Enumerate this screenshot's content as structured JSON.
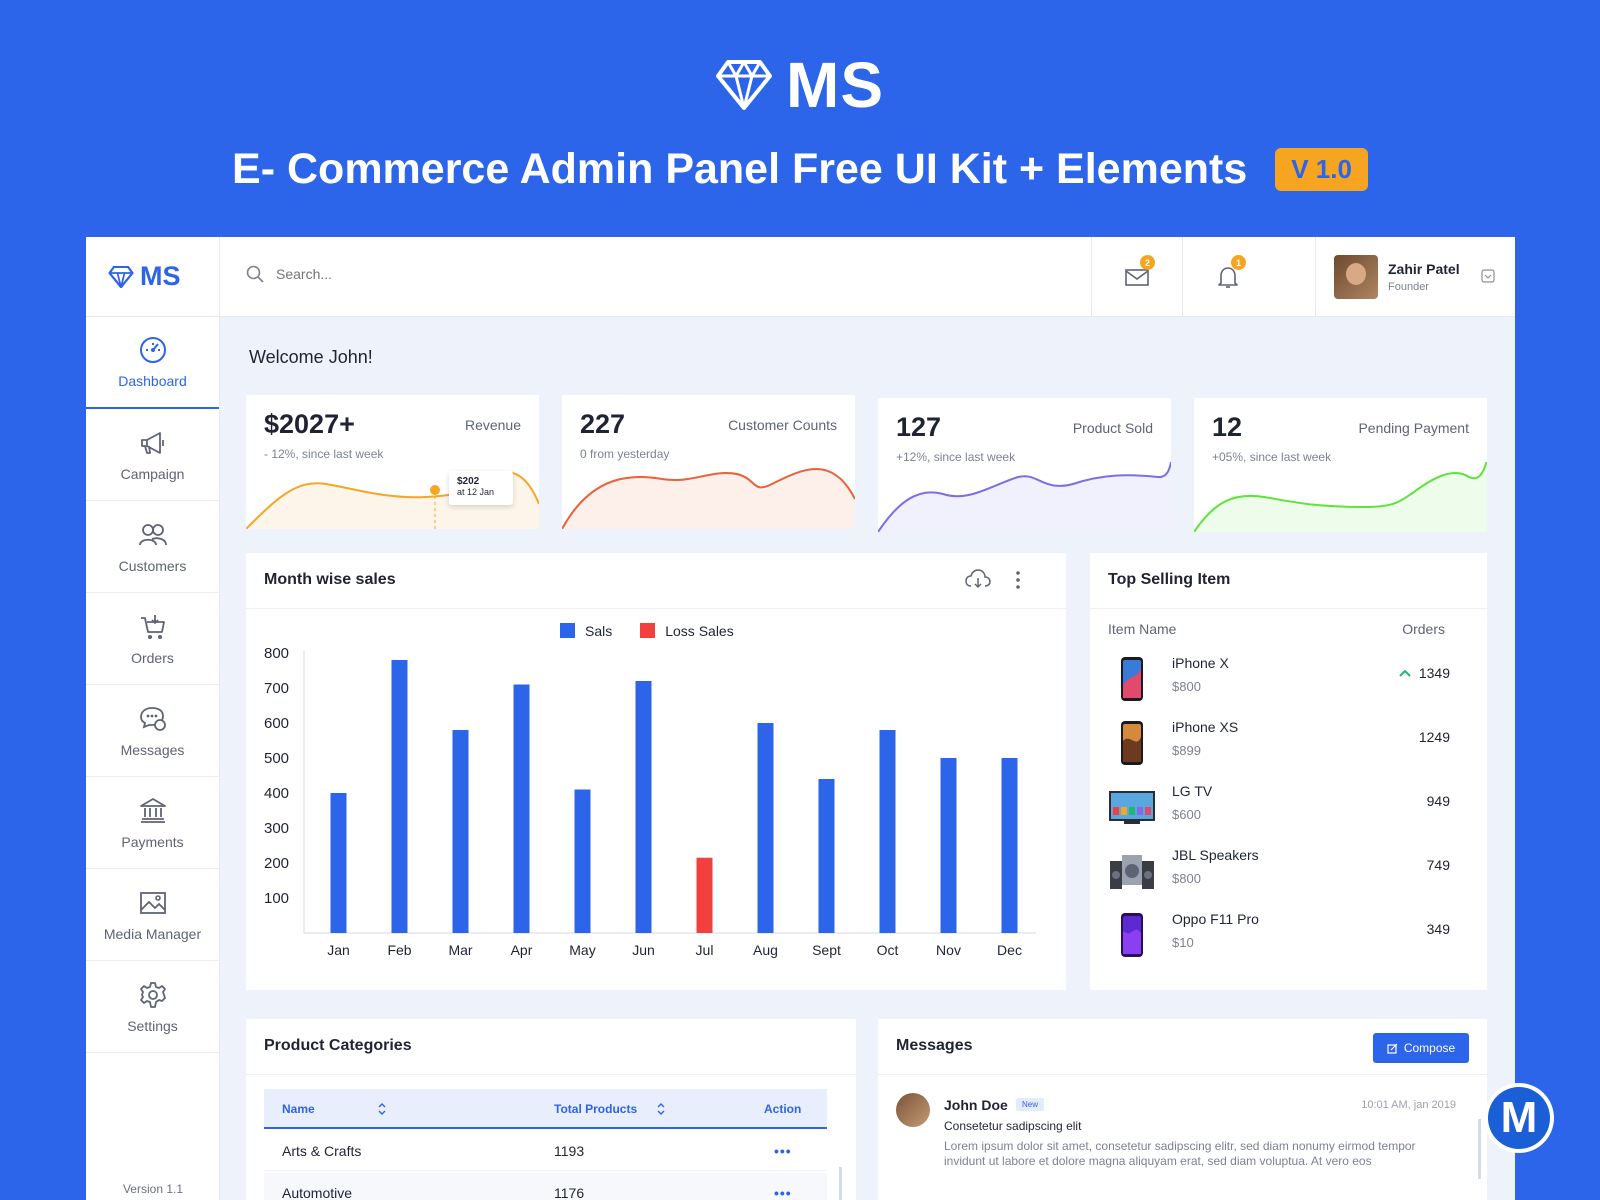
{
  "hero": {
    "brand": "MS",
    "title": "E- Commerce Admin Panel Free UI Kit + Elements",
    "version": "V 1.0"
  },
  "sidebar": {
    "brand": "MS",
    "items": [
      {
        "label": "Dashboard",
        "icon": "dashboard-icon",
        "active": true
      },
      {
        "label": "Campaign",
        "icon": "megaphone-icon"
      },
      {
        "label": "Customers",
        "icon": "users-icon"
      },
      {
        "label": "Orders",
        "icon": "cart-icon"
      },
      {
        "label": "Messages",
        "icon": "chat-icon"
      },
      {
        "label": "Payments",
        "icon": "bank-icon"
      },
      {
        "label": "Media Manager",
        "icon": "image-icon"
      },
      {
        "label": "Settings",
        "icon": "gear-icon"
      }
    ],
    "version": "Version 1.1"
  },
  "topbar": {
    "search_placeholder": "Search...",
    "mail_count": "2",
    "notif_count": "1",
    "user_name": "Zahir Patel",
    "user_role": "Founder"
  },
  "welcome": "Welcome John!",
  "stats": [
    {
      "value": "$2027+",
      "label": "Revenue",
      "sub": "- 12%, since last week",
      "color": "#f5a623",
      "fill": "#fdf5e9",
      "tooltip_value": "$202",
      "tooltip_sub": "at 12 Jan"
    },
    {
      "value": "227",
      "label": "Customer Counts",
      "sub": "0 from yesterday",
      "color": "#e8623a",
      "fill": "#fdefea"
    },
    {
      "value": "127",
      "label": "Product Sold",
      "sub": "+12%, since last week",
      "color": "#7b6ee8",
      "fill": "#f1f0fd"
    },
    {
      "value": "12",
      "label": "Pending Payment",
      "sub": "+05%, since last week",
      "color": "#5fe33a",
      "fill": "#eefceb"
    }
  ],
  "sales_card": {
    "title": "Month wise sales",
    "legend": [
      "Sals",
      "Loss Sales"
    ],
    "colors": {
      "sales": "#2c64ea",
      "loss": "#f2403f"
    }
  },
  "chart_data": {
    "type": "bar",
    "title": "Month wise sales",
    "categories": [
      "Jan",
      "Feb",
      "Mar",
      "Apr",
      "May",
      "Jun",
      "Jul",
      "Aug",
      "Sept",
      "Oct",
      "Nov",
      "Dec"
    ],
    "values": [
      400,
      780,
      580,
      710,
      410,
      720,
      215,
      600,
      440,
      580,
      500,
      500
    ],
    "loss_index": [
      6
    ],
    "series": [
      {
        "name": "Sals",
        "color": "#2c64ea"
      },
      {
        "name": "Loss Sales",
        "color": "#f2403f"
      }
    ],
    "yticks": [
      100,
      200,
      300,
      400,
      500,
      600,
      700,
      800
    ],
    "ylim": [
      0,
      800
    ],
    "legend": "top-center"
  },
  "top_selling": {
    "title": "Top Selling Item",
    "col_item": "Item Name",
    "col_orders": "Orders",
    "items": [
      {
        "name": "iPhone X",
        "price": "$800",
        "orders": "1349",
        "trend": "up"
      },
      {
        "name": "iPhone XS",
        "price": "$899",
        "orders": "1249"
      },
      {
        "name": "LG TV",
        "price": "$600",
        "orders": "949"
      },
      {
        "name": "JBL Speakers",
        "price": "$800",
        "orders": "749"
      },
      {
        "name": "Oppo F11 Pro",
        "price": "$10",
        "orders": "349"
      }
    ]
  },
  "categories_card": {
    "title": "Product Categories",
    "headers": [
      "Name",
      "Total Products",
      "Action"
    ],
    "rows": [
      {
        "name": "Arts & Crafts",
        "total": "1193",
        "action": "•••"
      },
      {
        "name": "Automotive",
        "total": "1176",
        "action": "•••"
      }
    ]
  },
  "messages_card": {
    "title": "Messages",
    "compose_label": "Compose",
    "message": {
      "from": "John Doe",
      "badge": "New",
      "time": "10:01 AM, jan 2019",
      "subject": "Consetetur sadipscing elit",
      "body": "Lorem ipsum dolor sit amet, consetetur sadipscing elitr, sed diam nonumy eirmod tempor invidunt ut labore et dolore magna aliquyam erat, sed diam voluptua. At vero eos"
    }
  },
  "corner_badge": "M"
}
